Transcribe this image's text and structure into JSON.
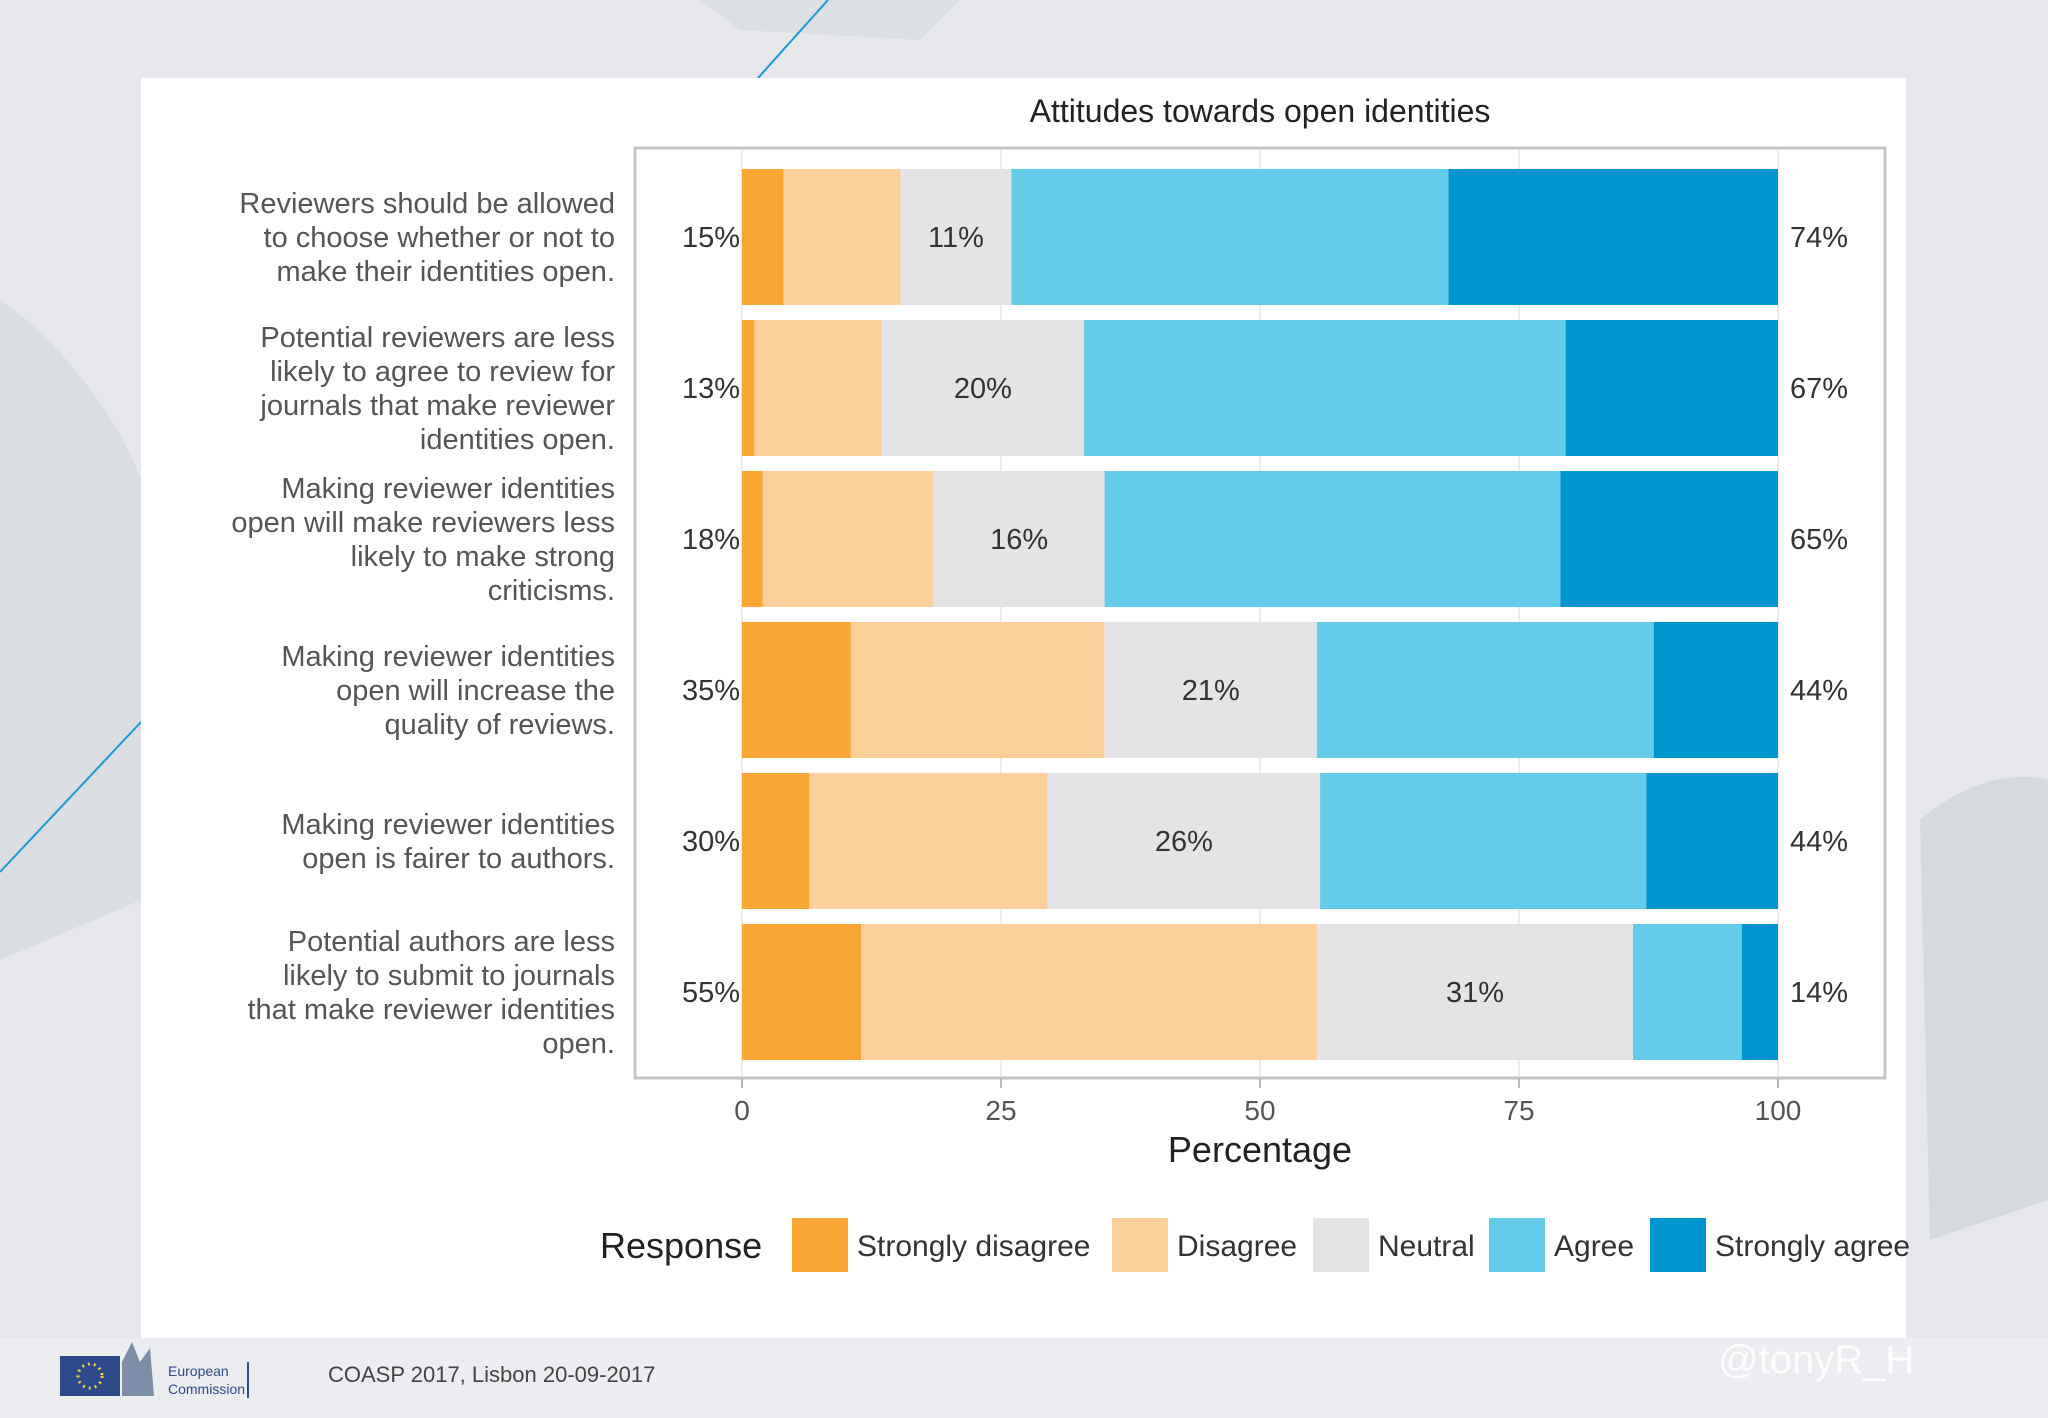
{
  "chart_data": {
    "type": "bar",
    "orientation": "horizontal",
    "stacked": true,
    "title": "Attitudes towards open identities",
    "xlabel": "Percentage",
    "xlim": [
      0,
      100
    ],
    "xticks": [
      "0",
      "25",
      "50",
      "75",
      "100"
    ],
    "legend_title": "Response",
    "legend_position": "bottom",
    "categories": [
      "Reviewers should be allowed\nto choose whether or not to\nmake their identities open.",
      "Potential reviewers are less\nlikely to agree to review for\njournals that make reviewer\nidentities open.",
      "Making reviewer identities\nopen will make reviewers less\nlikely to make strong\ncriticisms.",
      "Making reviewer identities\nopen will increase the\nquality of reviews.",
      "Making reviewer identities\nopen is fairer to authors.",
      "Potential authors are less\nlikely to submit to journals\nthat make reviewer identities\nopen."
    ],
    "series": [
      {
        "name": "Strongly disagree",
        "color": "#faa634",
        "values": [
          4,
          1.2,
          2,
          10.5,
          6.5,
          11.5
        ]
      },
      {
        "name": "Disagree",
        "color": "#fdd09b",
        "values": [
          11.3,
          12.3,
          16.5,
          24.5,
          23,
          44
        ]
      },
      {
        "name": "Neutral",
        "color": "#e4e4e6",
        "values": [
          10.7,
          19.5,
          16.5,
          20.5,
          26.3,
          30.5
        ]
      },
      {
        "name": "Agree",
        "color": "#64cbe9",
        "values": [
          42.2,
          46.5,
          44,
          32.5,
          31.5,
          10.5
        ]
      },
      {
        "name": "Strongly agree",
        "color": "#0095cf",
        "values": [
          31.8,
          20.5,
          21,
          12,
          12.7,
          3.5
        ]
      }
    ],
    "left_labels": [
      "15%",
      "13%",
      "18%",
      "35%",
      "30%",
      "55%"
    ],
    "center_labels": [
      "11%",
      "20%",
      "16%",
      "21%",
      "26%",
      "31%"
    ],
    "right_labels": [
      "74%",
      "67%",
      "65%",
      "44%",
      "44%",
      "14%"
    ]
  },
  "footer": {
    "logo_text": [
      "European",
      "Commission"
    ],
    "event": "COASP 2017, Lisbon 20-09-2017",
    "handle": "@tonyR_H"
  }
}
